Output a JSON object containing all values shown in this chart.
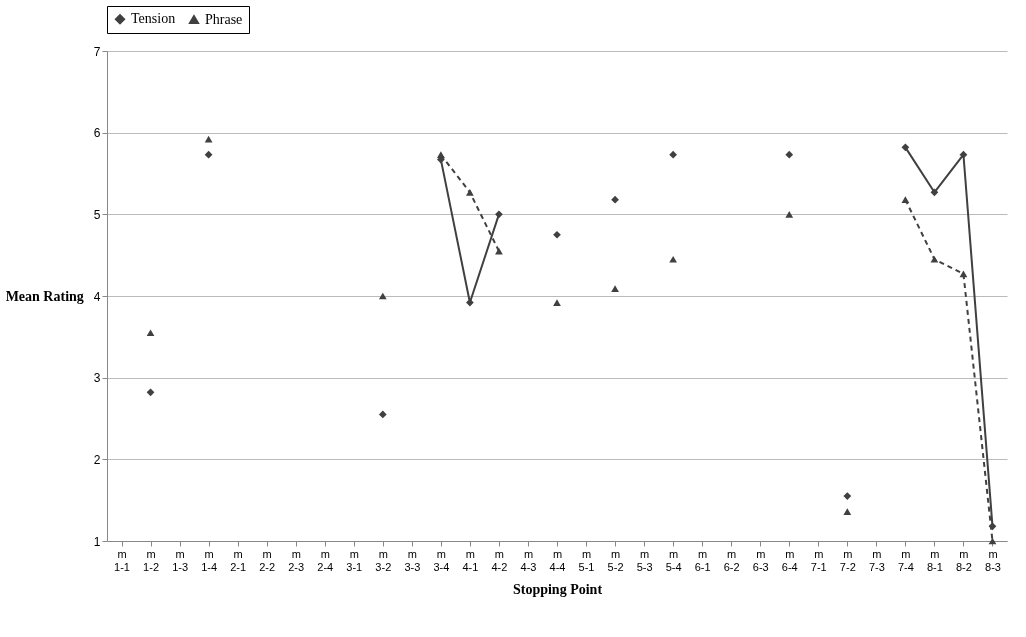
{
  "chart_data": {
    "type": "line",
    "xlabel": "Stopping Point",
    "ylabel": "Mean Rating",
    "categories": [
      "m 1-1",
      "m 1-2",
      "m 1-3",
      "m 1-4",
      "m 2-1",
      "m 2-2",
      "m 2-3",
      "m 2-4",
      "m 3-1",
      "m 3-2",
      "m 3-3",
      "m 3-4",
      "m 4-1",
      "m 4-2",
      "m 4-3",
      "m 4-4",
      "m 5-1",
      "m 5-2",
      "m 5-3",
      "m 5-4",
      "m 6-1",
      "m 6-2",
      "m 6-3",
      "m 6-4",
      "m 7-1",
      "m 7-2",
      "m 7-3",
      "m 7-4",
      "m 8-1",
      "m 8-2",
      "m 8-3"
    ],
    "series": [
      {
        "name": "Tension",
        "color": "#404040",
        "marker": "diamond",
        "line_style": "solid",
        "values": [
          null,
          2.82,
          null,
          5.73,
          null,
          null,
          null,
          null,
          null,
          2.55,
          null,
          5.67,
          3.92,
          5.0,
          null,
          4.75,
          null,
          5.18,
          null,
          5.73,
          null,
          null,
          null,
          5.73,
          null,
          1.55,
          null,
          5.82,
          5.27,
          5.73,
          1.18
        ]
      },
      {
        "name": "Phrase",
        "color": "#404040",
        "marker": "triangle",
        "line_style": "dashed",
        "values": [
          null,
          3.55,
          null,
          5.92,
          null,
          null,
          null,
          null,
          null,
          4.0,
          null,
          5.73,
          5.27,
          4.55,
          null,
          3.92,
          null,
          4.09,
          null,
          4.45,
          null,
          null,
          null,
          5.0,
          null,
          1.36,
          null,
          5.18,
          4.45,
          4.27,
          1.0
        ]
      }
    ],
    "ylim": [
      1,
      7
    ],
    "yticks": [
      1,
      2,
      3,
      4,
      5,
      6,
      7
    ],
    "grid": "y",
    "legend": "top"
  }
}
